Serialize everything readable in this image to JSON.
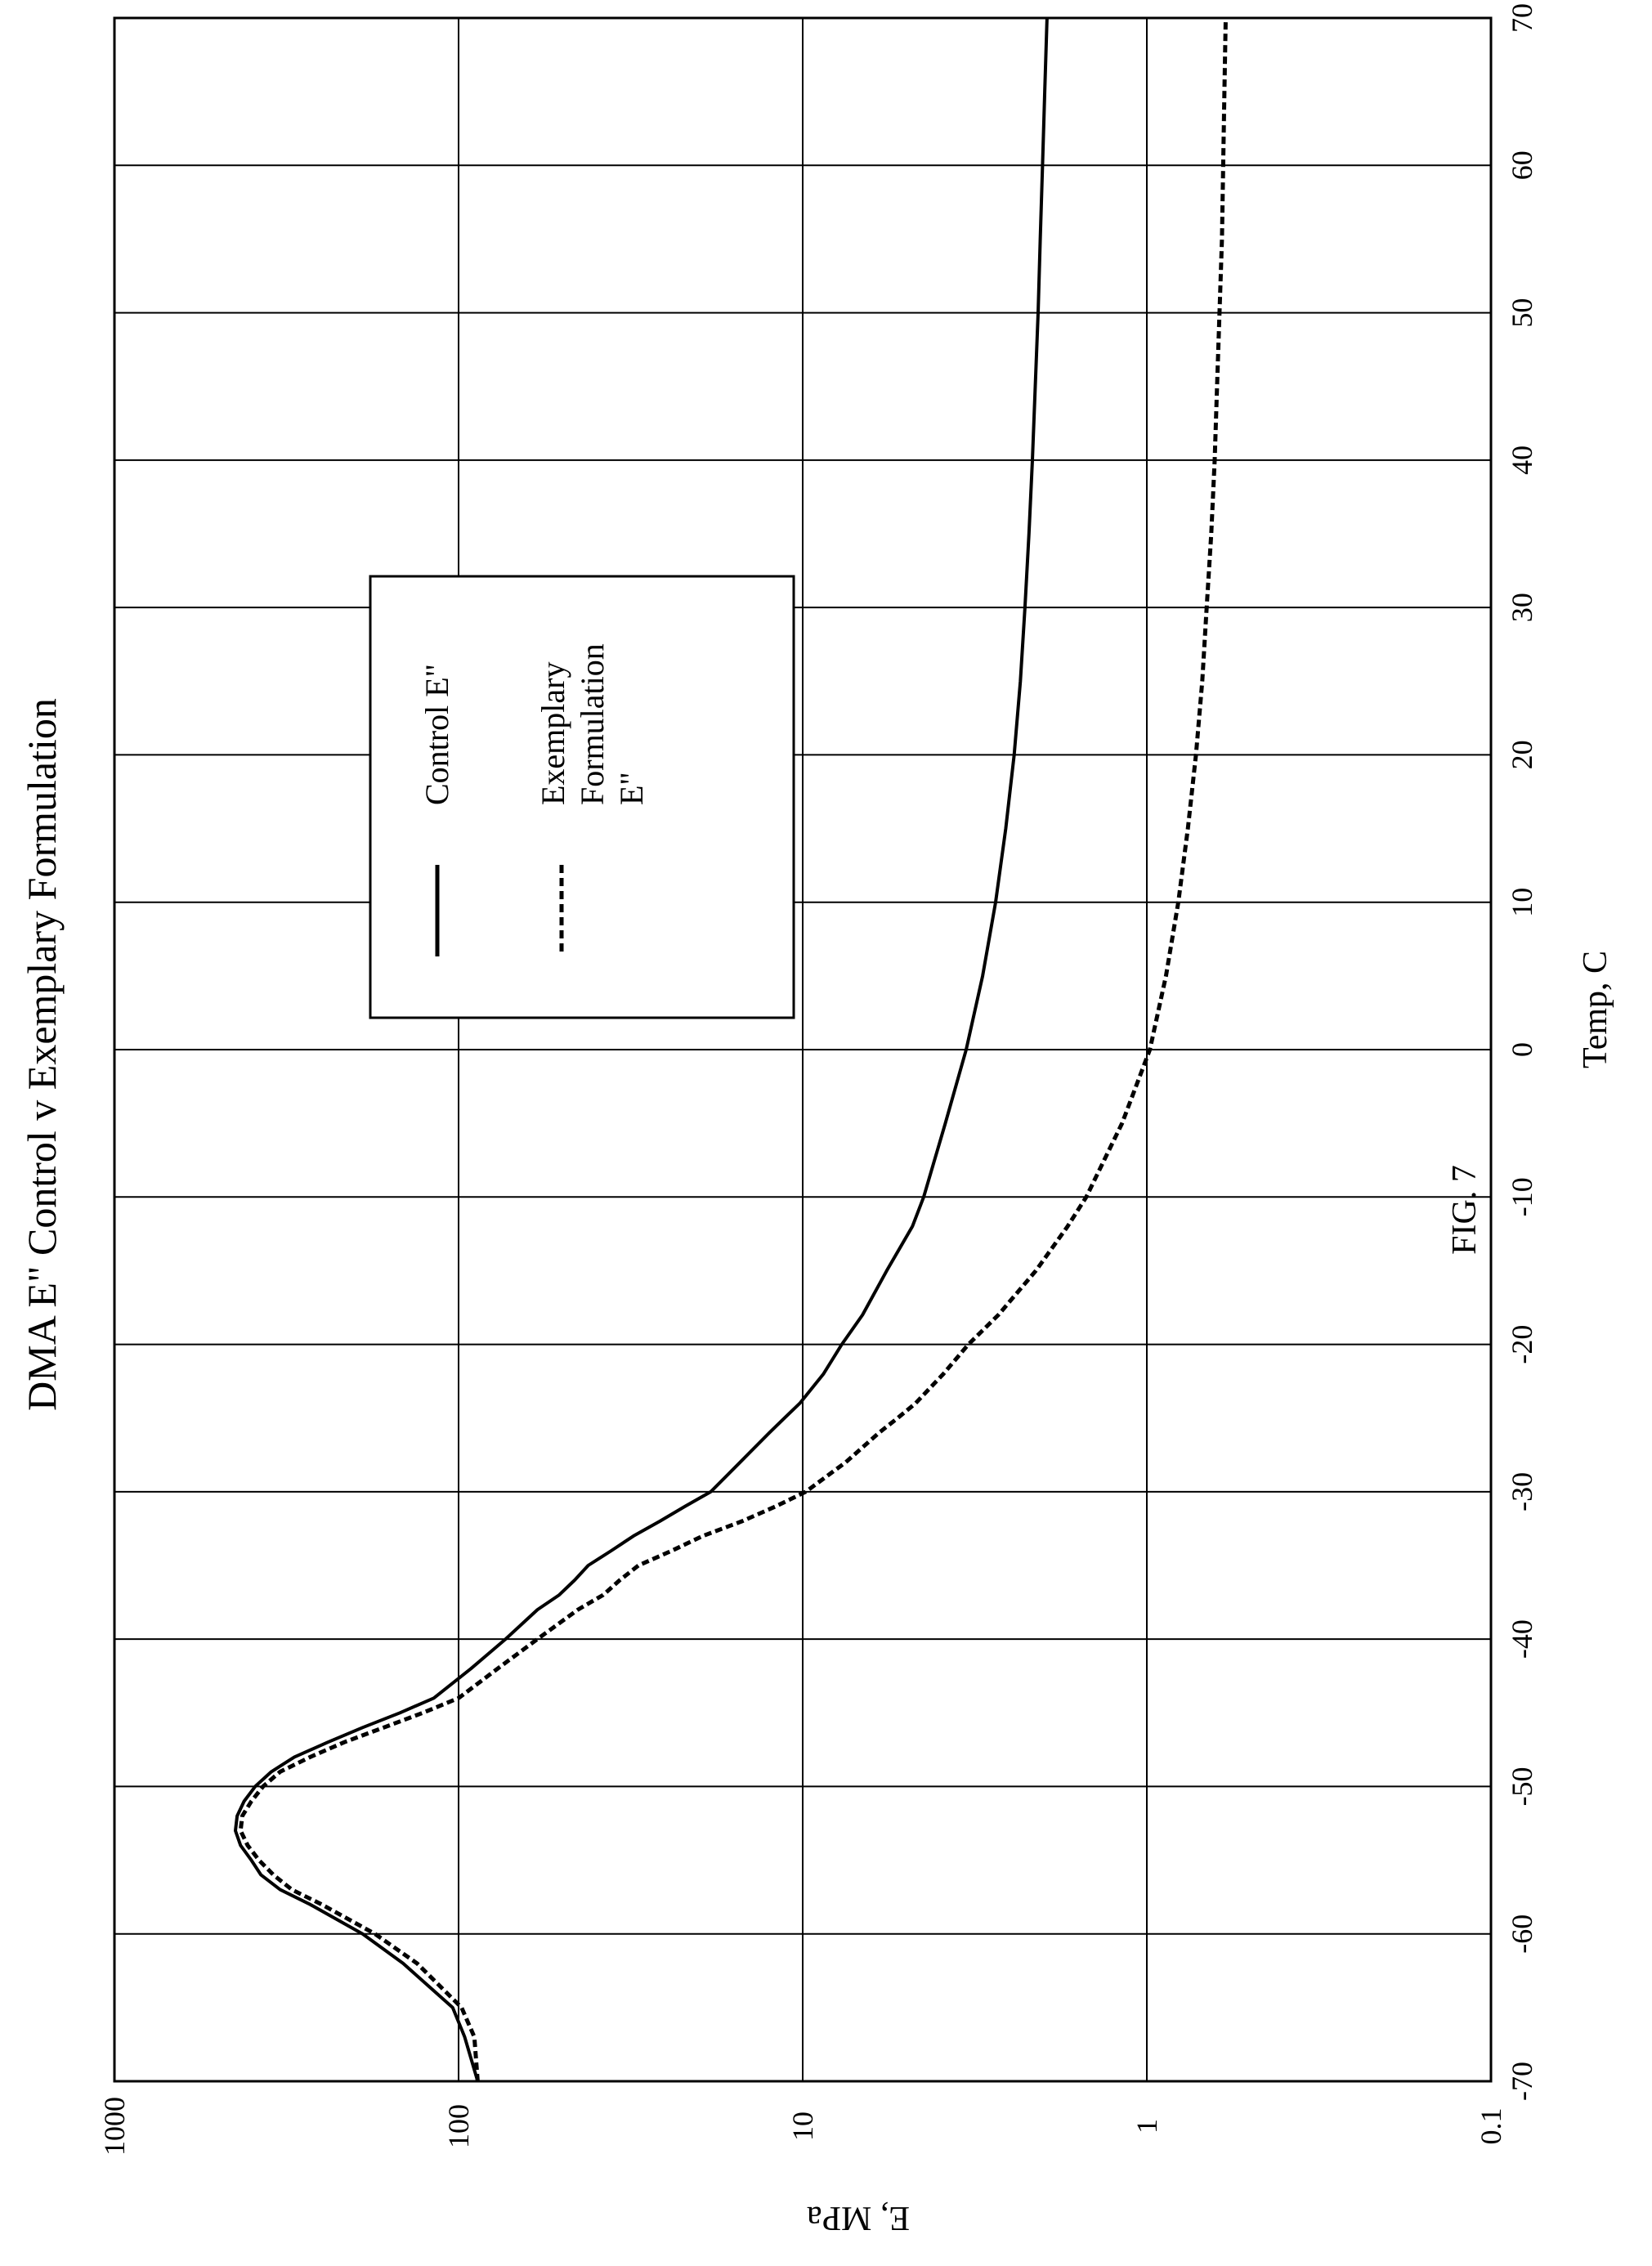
{
  "figure_label": "FIG. 7",
  "chart_data": {
    "type": "line",
    "title": "DMA E\" Control v Exemplary Formulation",
    "xlabel": "Temp, C",
    "ylabel": "E, MPa",
    "xlim": [
      -70,
      70
    ],
    "ylim": [
      0.1,
      1000
    ],
    "y_scale": "log",
    "x_ticks": [
      -70,
      -60,
      -50,
      -40,
      -30,
      -20,
      -10,
      0,
      10,
      20,
      30,
      40,
      50,
      60,
      70
    ],
    "x_tick_labels": [
      "-70",
      "-60",
      "-50",
      "-40",
      "-30",
      "-20",
      "-10",
      "0",
      "10",
      "20",
      "30",
      "40",
      "50",
      "60",
      "70"
    ],
    "y_ticks": [
      0.1,
      1,
      10,
      100,
      1000
    ],
    "y_tick_labels": [
      "0.1",
      "1",
      "10",
      "100",
      "1000"
    ],
    "grid": true,
    "legend_position": "center",
    "series": [
      {
        "name": "Control E\"",
        "style": "solid",
        "color": "#000000",
        "x": [
          -70,
          -67,
          -65,
          -62,
          -60,
          -58,
          -57,
          -56,
          -55,
          -54,
          -53,
          -52,
          -51,
          -50,
          -49,
          -48,
          -47,
          -46,
          -45,
          -44,
          -42,
          -40,
          -38,
          -37,
          -36,
          -35,
          -34,
          -33,
          -32,
          -31,
          -30,
          -28,
          -26,
          -25,
          -24,
          -22,
          -20,
          -18,
          -15,
          -12,
          -10,
          -5,
          0,
          5,
          10,
          15,
          20,
          25,
          30,
          35,
          40,
          45,
          50,
          55,
          60,
          65,
          70
        ],
        "y": [
          88,
          96,
          104,
          145,
          190,
          270,
          330,
          375,
          400,
          430,
          445,
          440,
          420,
          390,
          350,
          300,
          240,
          190,
          148,
          118,
          92,
          73,
          59,
          51,
          46,
          42,
          36,
          31,
          26,
          22,
          18.5,
          15.2,
          12.5,
          11.3,
          10.2,
          8.7,
          7.7,
          6.7,
          5.7,
          4.8,
          4.45,
          3.85,
          3.35,
          3.0,
          2.75,
          2.57,
          2.43,
          2.33,
          2.26,
          2.2,
          2.15,
          2.11,
          2.07,
          2.04,
          2.01,
          1.98,
          1.95
        ]
      },
      {
        "name": "Exemplary Formulation E\"",
        "style": "dashed",
        "color": "#000000",
        "x": [
          -70,
          -67,
          -65,
          -62,
          -60,
          -58,
          -57,
          -56,
          -55,
          -54,
          -53,
          -52,
          -51,
          -50,
          -49,
          -48,
          -47,
          -46,
          -45,
          -44,
          -42,
          -40,
          -38,
          -37,
          -36,
          -35,
          -34,
          -33,
          -32,
          -31,
          -30,
          -28,
          -26,
          -25,
          -24,
          -22,
          -20,
          -18,
          -15,
          -12,
          -10,
          -5,
          0,
          5,
          10,
          15,
          20,
          25,
          30,
          35,
          40,
          45,
          50,
          55,
          60,
          65,
          70
        ],
        "y": [
          88,
          90,
          98,
          132,
          175,
          250,
          305,
          345,
          380,
          410,
          430,
          425,
          400,
          370,
          330,
          270,
          215,
          165,
          127,
          100,
          77,
          59,
          45,
          38,
          34,
          30,
          24,
          19.5,
          15,
          12,
          9.8,
          7.5,
          6.0,
          5.3,
          4.7,
          3.9,
          3.3,
          2.7,
          2.1,
          1.7,
          1.5,
          1.18,
          0.98,
          0.88,
          0.81,
          0.76,
          0.72,
          0.69,
          0.67,
          0.65,
          0.635,
          0.625,
          0.615,
          0.605,
          0.6,
          0.595,
          0.59
        ]
      }
    ]
  }
}
